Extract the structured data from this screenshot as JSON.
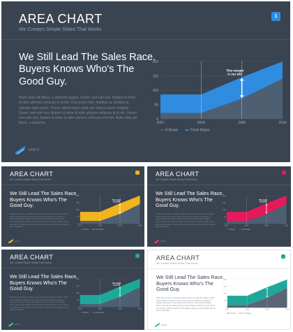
{
  "title": "AREA CHART",
  "subtitle": "We Creates Simple Slides That Works",
  "heading_lines": [
    "We Still Lead The Sales Race.",
    "Buyers Knows Who's The",
    "Good Guy."
  ],
  "body_text": "Nulla vitae elit libero, a pharetra augue. Donec sed odio dui. Nullam id dolor id nibh ultricies vehicula ut id elit. Cras justo odio, dapibus ac facilisis in, egestas eget quam. Donec ullamcorper nulla non metus auctor fringilla. Donec sed odio dui. Nullam id dolor id nibh ultricies vehicula ut id elit. Donec sed odio dui. Nullam id dolor id nibh ultricies vehicula ut id elit. Nulla vitae elit libero, a pharetra.",
  "logo_text": "SANTE",
  "annotation": "This margin is our win",
  "slides": [
    {
      "badge": "1",
      "accent": "#2f8ce0"
    },
    {
      "badge": "",
      "accent": "#f0b41e"
    },
    {
      "badge": "",
      "accent": "#e6195a"
    },
    {
      "badge": "",
      "accent": "#1fa89a"
    },
    {
      "badge": "",
      "accent": "#1fa89a"
    }
  ],
  "chart_data": {
    "type": "area",
    "x": [
      2007,
      2008,
      2009,
      2010
    ],
    "series": [
      {
        "name": "Follower",
        "values": [
          20,
          20,
          70,
          140
        ],
        "color": "#4f5f72"
      },
      {
        "name": "Trend Maker",
        "values": [
          85,
          85,
          145,
          200
        ]
      }
    ],
    "xlim": [
      2007,
      2010
    ],
    "ylim": [
      0,
      200
    ],
    "yticks": [
      0,
      50,
      100,
      150,
      200
    ],
    "marker_x": [
      2008,
      2009
    ],
    "annotation_x": 2009,
    "legend": "bottom-left"
  }
}
